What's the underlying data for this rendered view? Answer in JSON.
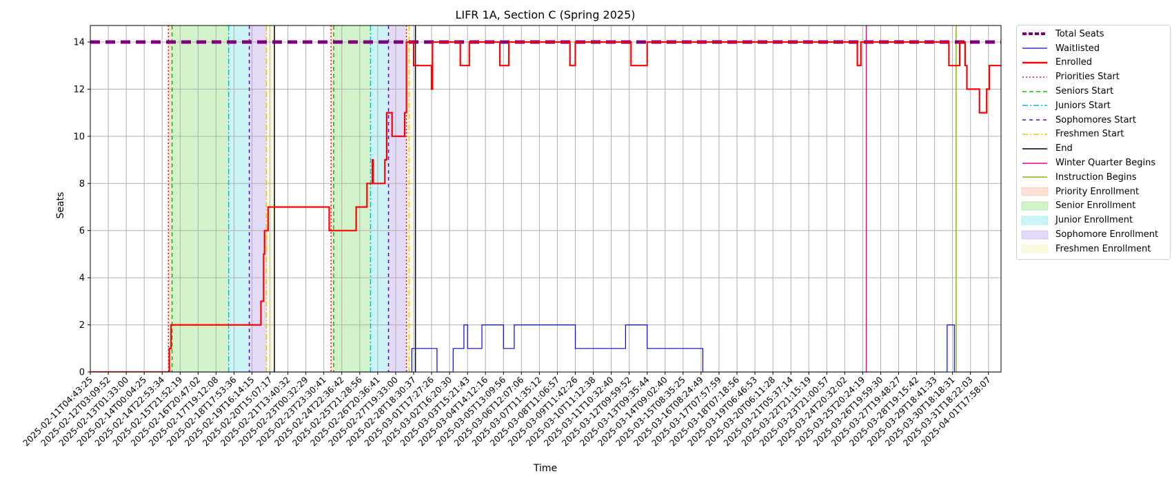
{
  "chart_data": {
    "type": "line",
    "title": "LIFR 1A, Section C (Spring 2025)",
    "xlabel": "Time",
    "ylabel": "Seats",
    "ylim": [
      0,
      14.7
    ],
    "yticks": [
      0,
      2,
      4,
      6,
      8,
      10,
      12,
      14
    ],
    "grid": true,
    "legend_placement": "outside-right",
    "x_ticks": [
      "2025-02-11T04:43:25",
      "2025-02-12T03:09:52",
      "2025-02-13T01:33:00",
      "2025-02-14T00:04:25",
      "2025-02-14T22:53:34",
      "2025-02-15T21:52:19",
      "2025-02-16T20:47:02",
      "2025-02-17T19:12:08",
      "2025-02-18T17:53:36",
      "2025-02-19T16:14:15",
      "2025-02-20T15:07:17",
      "2025-02-21T13:40:32",
      "2025-02-23T00:32:29",
      "2025-02-23T23:30:41",
      "2025-02-24T22:36:42",
      "2025-02-25T21:28:56",
      "2025-02-26T20:36:41",
      "2025-02-27T19:33:00",
      "2025-02-28T18:30:37",
      "2025-03-01T17:27:26",
      "2025-03-02T16:20:30",
      "2025-03-03T15:21:43",
      "2025-03-04T14:12:16",
      "2025-03-05T13:09:56",
      "2025-03-06T12:07:06",
      "2025-03-07T11:35:12",
      "2025-03-08T11:06:57",
      "2025-03-09T11:42:26",
      "2025-03-10T11:12:38",
      "2025-03-11T10:32:40",
      "2025-03-12T09:59:52",
      "2025-03-13T09:35:44",
      "2025-03-14T09:02:40",
      "2025-03-15T08:35:25",
      "2025-03-16T08:24:49",
      "2025-03-17T07:57:59",
      "2025-03-18T07:18:56",
      "2025-03-19T06:46:53",
      "2025-03-20T06:11:28",
      "2025-03-21T05:37:14",
      "2025-03-22T21:15:19",
      "2025-03-23T21:00:57",
      "2025-03-24T20:32:02",
      "2025-03-25T20:24:19",
      "2025-03-26T19:59:30",
      "2025-03-27T19:48:27",
      "2025-03-28T19:15:42",
      "2025-03-29T18:41:33",
      "2025-03-30T18:18:31",
      "2025-03-31T18:22:03",
      "2025-04-01T17:58:07"
    ],
    "x_tick_positions": [
      0,
      1,
      2,
      3,
      4,
      5,
      6,
      7,
      8,
      9,
      10,
      11,
      12,
      13,
      14,
      15,
      16,
      17,
      18,
      19,
      20,
      21,
      22,
      23,
      24,
      25,
      26,
      27,
      28,
      29,
      30,
      31,
      32,
      33,
      34,
      35,
      36,
      37,
      38,
      39,
      40,
      41,
      42,
      43,
      44,
      45,
      46,
      47,
      48,
      49,
      50
    ],
    "x_range": [
      0,
      50.7
    ],
    "series": [
      {
        "name": "Total Seats",
        "color": "#800080",
        "style": "dashed-thick",
        "points": [
          [
            0,
            14
          ],
          [
            50.7,
            14
          ]
        ]
      },
      {
        "name": "Waitlisted",
        "color": "#0000ff",
        "style": "solid-thin",
        "points": [
          [
            0,
            0
          ],
          [
            17.9,
            0
          ],
          [
            17.9,
            1
          ],
          [
            19.3,
            1
          ],
          [
            19.3,
            0
          ],
          [
            20.2,
            0
          ],
          [
            20.2,
            1
          ],
          [
            20.8,
            1
          ],
          [
            20.8,
            2
          ],
          [
            21.0,
            2
          ],
          [
            21.0,
            1
          ],
          [
            21.8,
            1
          ],
          [
            21.8,
            2
          ],
          [
            23.0,
            2
          ],
          [
            23.0,
            1
          ],
          [
            23.6,
            1
          ],
          [
            23.6,
            2
          ],
          [
            27.0,
            2
          ],
          [
            27.0,
            1
          ],
          [
            29.8,
            1
          ],
          [
            29.8,
            2
          ],
          [
            31.0,
            2
          ],
          [
            31.0,
            1
          ],
          [
            34.1,
            1
          ],
          [
            34.1,
            0
          ],
          [
            47.7,
            0
          ],
          [
            47.7,
            2
          ],
          [
            48.1,
            2
          ],
          [
            48.1,
            0
          ],
          [
            50.7,
            0
          ]
        ]
      },
      {
        "name": "Enrolled",
        "color": "#ff0000",
        "style": "solid-thick",
        "points": [
          [
            0,
            0
          ],
          [
            4.4,
            0
          ],
          [
            4.4,
            1
          ],
          [
            4.5,
            1
          ],
          [
            4.5,
            2
          ],
          [
            9.5,
            2
          ],
          [
            9.5,
            3
          ],
          [
            9.65,
            3
          ],
          [
            9.65,
            5
          ],
          [
            9.7,
            5
          ],
          [
            9.7,
            6
          ],
          [
            9.9,
            6
          ],
          [
            9.9,
            7
          ],
          [
            13.3,
            7
          ],
          [
            13.3,
            6
          ],
          [
            14.8,
            6
          ],
          [
            14.8,
            7
          ],
          [
            15.4,
            7
          ],
          [
            15.4,
            8
          ],
          [
            15.7,
            8
          ],
          [
            15.7,
            9
          ],
          [
            15.75,
            9
          ],
          [
            15.75,
            8
          ],
          [
            16.4,
            8
          ],
          [
            16.4,
            9
          ],
          [
            16.5,
            9
          ],
          [
            16.5,
            11
          ],
          [
            16.8,
            11
          ],
          [
            16.8,
            10
          ],
          [
            17.5,
            10
          ],
          [
            17.5,
            11
          ],
          [
            17.6,
            11
          ],
          [
            17.6,
            14
          ],
          [
            18.0,
            14
          ],
          [
            18.0,
            13
          ],
          [
            19.0,
            13
          ],
          [
            19.0,
            12
          ],
          [
            19.05,
            12
          ],
          [
            19.05,
            14
          ],
          [
            20.6,
            14
          ],
          [
            20.6,
            13
          ],
          [
            21.1,
            13
          ],
          [
            21.1,
            14
          ],
          [
            22.8,
            14
          ],
          [
            22.8,
            13
          ],
          [
            23.3,
            13
          ],
          [
            23.3,
            14
          ],
          [
            26.7,
            14
          ],
          [
            26.7,
            13
          ],
          [
            27.0,
            13
          ],
          [
            27.0,
            14
          ],
          [
            30.1,
            14
          ],
          [
            30.1,
            13
          ],
          [
            31.0,
            13
          ],
          [
            31.0,
            14
          ],
          [
            42.7,
            14
          ],
          [
            42.7,
            13
          ],
          [
            42.9,
            13
          ],
          [
            42.9,
            14
          ],
          [
            47.8,
            14
          ],
          [
            47.8,
            13
          ],
          [
            48.4,
            13
          ],
          [
            48.4,
            14
          ],
          [
            48.7,
            14
          ],
          [
            48.7,
            13
          ],
          [
            48.8,
            13
          ],
          [
            48.8,
            12
          ],
          [
            49.5,
            12
          ],
          [
            49.5,
            11
          ],
          [
            49.9,
            11
          ],
          [
            49.9,
            12
          ],
          [
            50.05,
            12
          ],
          [
            50.05,
            13
          ],
          [
            50.7,
            13
          ]
        ]
      }
    ],
    "phase_lines": [
      {
        "name": "Priorities Start",
        "color": "#ff0000",
        "dash": "2,3",
        "x": [
          4.35,
          13.4,
          17.6
        ]
      },
      {
        "name": "Seniors Start",
        "color": "#00c000",
        "dash": "6,4",
        "x": [
          4.55,
          13.55
        ]
      },
      {
        "name": "Juniors Start",
        "color": "#00bcd4",
        "dash": "8,3,2,3",
        "x": [
          7.7,
          15.6
        ]
      },
      {
        "name": "Sophomores Start",
        "color": "#5a00d2",
        "dash": "5,5",
        "x": [
          8.85,
          16.6
        ]
      },
      {
        "name": "Freshmen Start",
        "color": "#e6c800",
        "dash": "8,3,2,3",
        "x": [
          9.8,
          17.75
        ]
      },
      {
        "name": "End",
        "color": "#000000",
        "dash": "",
        "x": [
          10.25,
          18.1
        ]
      },
      {
        "name": "Winter Quarter Begins",
        "color": "#e6009a",
        "dash": "",
        "x": [
          43.2
        ]
      },
      {
        "name": "Instruction Begins",
        "color": "#7fba00",
        "dash": "",
        "x": [
          48.2
        ]
      }
    ],
    "phase_spans": [
      {
        "name": "Priority Enrollment",
        "color": "#f4b69b",
        "ranges": [
          [
            4.35,
            4.55
          ],
          [
            13.4,
            13.55
          ]
        ]
      },
      {
        "name": "Senior Enrollment",
        "color": "#8ee27a",
        "ranges": [
          [
            4.55,
            7.7
          ],
          [
            13.55,
            15.6
          ]
        ]
      },
      {
        "name": "Junior Enrollment",
        "color": "#7fe3ec",
        "ranges": [
          [
            7.7,
            8.85
          ],
          [
            15.6,
            16.6
          ]
        ]
      },
      {
        "name": "Sophomore Enrollment",
        "color": "#b9a3ec",
        "ranges": [
          [
            8.85,
            9.8
          ],
          [
            16.6,
            17.6
          ]
        ]
      },
      {
        "name": "Freshmen Enrollment",
        "color": "#f6f1b3",
        "ranges": [
          [
            9.8,
            10.25
          ],
          [
            17.6,
            17.75
          ]
        ]
      }
    ],
    "legend": [
      {
        "label": "Total Seats",
        "kind": "line",
        "color": "#800080",
        "dash": "6,3",
        "width": 4
      },
      {
        "label": "Waitlisted",
        "kind": "line",
        "color": "#0000ff",
        "dash": "",
        "width": 1.2
      },
      {
        "label": "Enrolled",
        "kind": "line",
        "color": "#ff0000",
        "dash": "",
        "width": 2.5
      },
      {
        "label": "Priorities Start",
        "kind": "line",
        "color": "#ff0000",
        "dash": "2,3",
        "width": 1.5
      },
      {
        "label": "Seniors Start",
        "kind": "line",
        "color": "#00c000",
        "dash": "6,4",
        "width": 1.5
      },
      {
        "label": "Juniors Start",
        "kind": "line",
        "color": "#00bcd4",
        "dash": "8,3,2,3",
        "width": 1.5
      },
      {
        "label": "Sophomores Start",
        "kind": "line",
        "color": "#5a00d2",
        "dash": "5,5",
        "width": 1.5
      },
      {
        "label": "Freshmen Start",
        "kind": "line",
        "color": "#e6c800",
        "dash": "8,3,2,3",
        "width": 1.5
      },
      {
        "label": "End",
        "kind": "line",
        "color": "#000000",
        "dash": "",
        "width": 1.5
      },
      {
        "label": "Winter Quarter Begins",
        "kind": "line",
        "color": "#e6009a",
        "dash": "",
        "width": 1.5
      },
      {
        "label": "Instruction Begins",
        "kind": "line",
        "color": "#7fba00",
        "dash": "",
        "width": 1.5
      },
      {
        "label": "Priority Enrollment",
        "kind": "patch",
        "color": "#f4b69b"
      },
      {
        "label": "Senior Enrollment",
        "kind": "patch",
        "color": "#8ee27a"
      },
      {
        "label": "Junior Enrollment",
        "kind": "patch",
        "color": "#7fe3ec"
      },
      {
        "label": "Sophomore Enrollment",
        "kind": "patch",
        "color": "#b9a3ec"
      },
      {
        "label": "Freshmen Enrollment",
        "kind": "patch",
        "color": "#f6f1b3"
      }
    ]
  }
}
